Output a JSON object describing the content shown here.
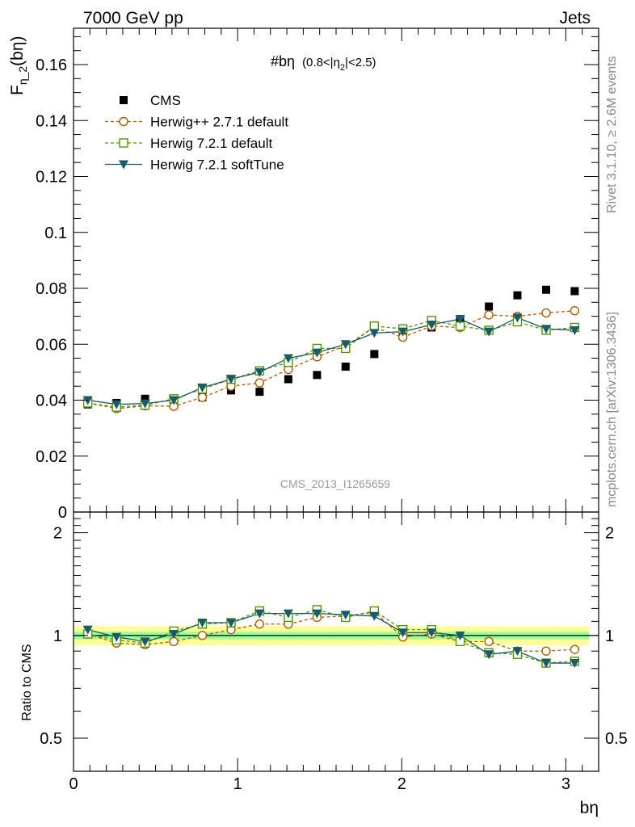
{
  "header": {
    "left": "7000 GeV pp",
    "right": "Jets"
  },
  "side_text": {
    "rivet": "Rivet 3.1.10, ≥ 2.6M events",
    "mcplots": "mcplots.cern.ch [arXiv:1306.3436]"
  },
  "plot_title": {
    "main": "#bη",
    "cut": "(0.8<|η",
    "cut_sub": "2",
    "cut_end": "|<2.5)"
  },
  "watermark": "CMS_2013_I1265659",
  "axes": {
    "ylabel_main": "F",
    "ylabel_sub": "η_2",
    "ylabel_end": "(bη)",
    "xlabel": "bη",
    "ratio_ylabel": "Ratio to CMS"
  },
  "colors": {
    "cms": "#000000",
    "herwigpp": "#b35900",
    "herwig721": "#4d9900",
    "softtune": "#1a5a6b",
    "band_inner": "#99ff99",
    "band_outer": "#ffff99"
  },
  "chart_data": [
    {
      "type": "scatter",
      "title": "",
      "xlabel": "bη",
      "ylabel": "F_η_2(bη)",
      "xlim": [
        0,
        3.2
      ],
      "ylim": [
        0,
        0.173
      ],
      "yticks": [
        0,
        0.02,
        0.04,
        0.06,
        0.08,
        0.1,
        0.12,
        0.14,
        0.16
      ],
      "ytick_labels": [
        "0",
        "0.02",
        "0.04",
        "0.06",
        "0.08",
        "0.1",
        "0.12",
        "0.14",
        "0.16"
      ],
      "x": [
        0.087,
        0.262,
        0.436,
        0.611,
        0.785,
        0.96,
        1.134,
        1.309,
        1.484,
        1.658,
        1.833,
        2.007,
        2.182,
        2.356,
        2.531,
        2.705,
        2.88,
        3.054
      ],
      "legend_position": "top-left",
      "series": [
        {
          "name": "CMS",
          "marker": "filled-square",
          "values": [
            0.0385,
            0.039,
            0.0405,
            0.0395,
            0.041,
            0.0435,
            0.043,
            0.0475,
            0.049,
            0.052,
            0.0565,
            0.063,
            0.066,
            0.069,
            0.0735,
            0.0775,
            0.0795,
            0.079
          ]
        },
        {
          "name": "Herwig++ 2.7.1 default",
          "marker": "open-circle",
          "values": [
            0.039,
            0.037,
            0.038,
            0.0378,
            0.041,
            0.045,
            0.0462,
            0.051,
            0.0555,
            0.0595,
            0.066,
            0.0625,
            0.0665,
            0.066,
            0.0705,
            0.07,
            0.0712,
            0.072
          ]
        },
        {
          "name": "Herwig 7.2.1 default",
          "marker": "open-square",
          "values": [
            0.039,
            0.0375,
            0.0382,
            0.0405,
            0.044,
            0.0475,
            0.0505,
            0.0535,
            0.0585,
            0.0585,
            0.0665,
            0.0655,
            0.0685,
            0.0665,
            0.065,
            0.068,
            0.065,
            0.066
          ]
        },
        {
          "name": "Herwig 7.2.1 softTune",
          "marker": "filled-triangle-down",
          "values": [
            0.04,
            0.0385,
            0.0388,
            0.04,
            0.0445,
            0.0475,
            0.05,
            0.055,
            0.057,
            0.06,
            0.064,
            0.0645,
            0.067,
            0.069,
            0.0645,
            0.0695,
            0.0655,
            0.065
          ]
        }
      ]
    },
    {
      "type": "line",
      "title": "",
      "xlabel": "bη",
      "ylabel": "Ratio to CMS",
      "xlim": [
        0,
        3.2
      ],
      "ylim": [
        0.4,
        2.3
      ],
      "yscale": "log",
      "yticks": [
        0.5,
        1,
        2
      ],
      "ytick_labels": [
        "0.5",
        "1",
        "2"
      ],
      "xticks": [
        0,
        1,
        2,
        3
      ],
      "xtick_labels": [
        "0",
        "1",
        "2",
        "3"
      ],
      "band_inner_halfwidth": 0.025,
      "band_outer_halfwidth": 0.065,
      "series": [
        {
          "name": "Herwig++ 2.7.1 default",
          "values": [
            1.01,
            0.95,
            0.94,
            0.96,
            1.0,
            1.04,
            1.08,
            1.08,
            1.13,
            1.14,
            1.17,
            0.99,
            1.01,
            0.96,
            0.96,
            0.9,
            0.9,
            0.91
          ]
        },
        {
          "name": "Herwig 7.2.1 default",
          "values": [
            1.01,
            0.97,
            0.95,
            1.03,
            1.08,
            1.09,
            1.18,
            1.13,
            1.19,
            1.13,
            1.18,
            1.04,
            1.04,
            0.96,
            0.89,
            0.88,
            0.83,
            0.84
          ]
        },
        {
          "name": "Herwig 7.2.1 softTune",
          "values": [
            1.04,
            0.99,
            0.96,
            1.01,
            1.09,
            1.09,
            1.16,
            1.16,
            1.16,
            1.15,
            1.14,
            1.02,
            1.02,
            1.0,
            0.88,
            0.9,
            0.83,
            0.83
          ]
        }
      ]
    }
  ]
}
